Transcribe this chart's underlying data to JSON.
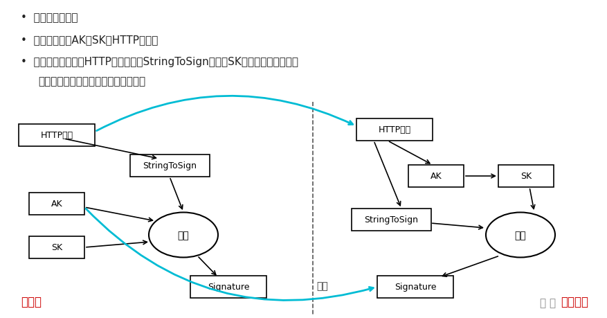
{
  "bg_color": "#ffffff",
  "bullet_lines": [
    "目的：防止篹改",
    "签名前准备：AK、SK、HTTP请求。",
    "签名的思路：根据HTTP请求提取出StringToSign，使用SK加密计算得到签名，",
    "服务端与客户端一致，签名校验通过。"
  ],
  "cyan_color": "#00bcd4",
  "red_color": "#cc0000",
  "gray_color": "#888888",
  "client_label": "客户端",
  "server_label": "服务端区",
  "server_prefix": "华 为",
  "jiaoyan_label": "校验",
  "jisuan_label": "计算",
  "http_label": "HTTP请求",
  "stringtosign_label": "StringToSign",
  "ak_label": "AK",
  "sk_label": "SK",
  "sig_label": "Signature"
}
